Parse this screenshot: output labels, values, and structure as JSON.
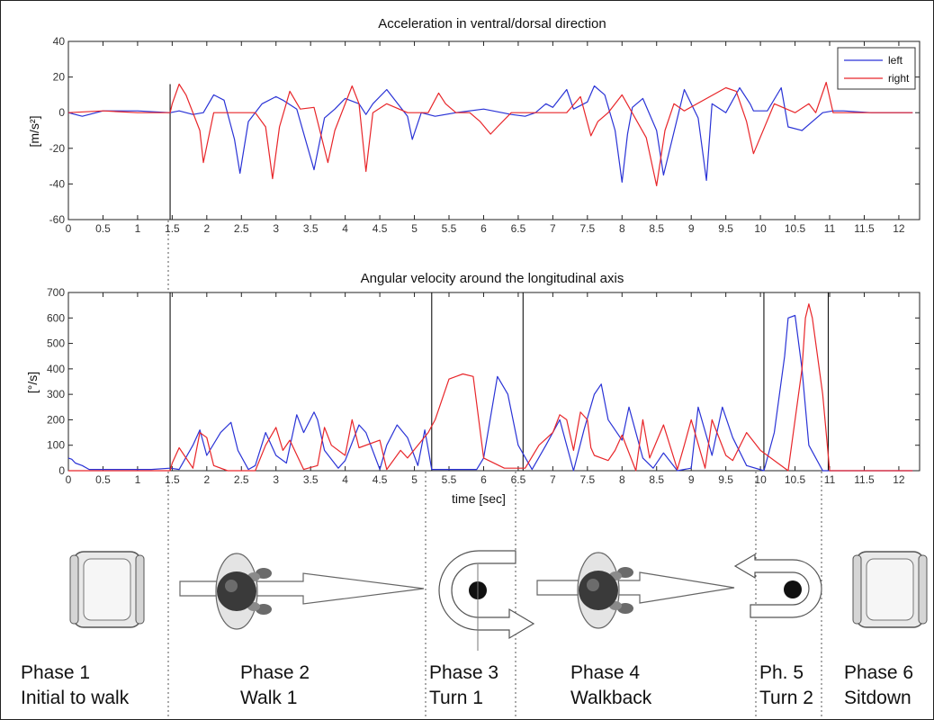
{
  "chart_data": [
    {
      "type": "line",
      "title": "Acceleration in ventral/dorsal direction",
      "ylabel": "[m/s²]",
      "xlabel": "",
      "xlim": [
        0,
        12.3
      ],
      "ylim": [
        -60,
        40
      ],
      "xticks": [
        "0",
        "0.5",
        "1",
        "1.5",
        "2",
        "2.5",
        "3",
        "3.5",
        "4",
        "4.5",
        "5",
        "5.5",
        "6",
        "6.5",
        "7",
        "7.5",
        "8",
        "8.5",
        "9",
        "9.5",
        "10",
        "10.5",
        "11",
        "11.5",
        "12"
      ],
      "yticks": [
        "40",
        "20",
        "0",
        "-20",
        "-40",
        "-60"
      ],
      "legend": {
        "position": "top-right"
      },
      "grid": false,
      "colors": {
        "left": "#2a33d6",
        "right": "#e8262a"
      },
      "vlines": [
        1.47
      ],
      "series": [
        {
          "name": "left",
          "x": [
            0,
            0.2,
            0.5,
            1.0,
            1.47,
            1.6,
            1.8,
            1.95,
            2.1,
            2.25,
            2.4,
            2.48,
            2.6,
            2.8,
            3.0,
            3.1,
            3.3,
            3.55,
            3.7,
            3.85,
            4.0,
            4.2,
            4.3,
            4.4,
            4.6,
            4.9,
            4.97,
            5.1,
            5.3,
            5.6,
            6.0,
            6.4,
            6.6,
            6.75,
            6.9,
            7.0,
            7.2,
            7.3,
            7.5,
            7.6,
            7.75,
            7.9,
            8.0,
            8.08,
            8.15,
            8.3,
            8.5,
            8.6,
            8.9,
            9.1,
            9.22,
            9.3,
            9.5,
            9.7,
            9.85,
            9.9,
            10.1,
            10.3,
            10.4,
            10.6,
            10.75,
            10.9,
            11.05,
            11.2,
            11.6,
            12.2
          ],
          "y": [
            0,
            -2,
            1,
            1,
            0,
            1,
            -1,
            0,
            10,
            7,
            -15,
            -34,
            -5,
            5,
            9,
            7,
            2,
            -32,
            -3,
            2,
            8,
            5,
            -1,
            5,
            13,
            -2,
            -15,
            0,
            -2,
            0,
            2,
            -1,
            -2,
            0,
            5,
            3,
            13,
            2,
            6,
            15,
            10,
            -10,
            -39,
            -12,
            3,
            8,
            -10,
            -35,
            13,
            -3,
            -38,
            5,
            0,
            14,
            5,
            1,
            1,
            14,
            -8,
            -10,
            -5,
            0,
            1,
            1,
            0,
            0
          ]
        },
        {
          "name": "right",
          "x": [
            0,
            0.5,
            1.0,
            1.47,
            1.5,
            1.6,
            1.7,
            1.9,
            1.95,
            2.1,
            2.3,
            2.7,
            2.85,
            2.95,
            3.05,
            3.2,
            3.35,
            3.55,
            3.75,
            3.85,
            4.1,
            4.2,
            4.3,
            4.4,
            4.6,
            4.9,
            5.2,
            5.35,
            5.45,
            5.6,
            5.8,
            5.95,
            6.1,
            6.2,
            6.4,
            6.6,
            7.0,
            7.2,
            7.4,
            7.55,
            7.65,
            7.8,
            8.0,
            8.35,
            8.5,
            8.62,
            8.75,
            8.9,
            9.5,
            9.65,
            9.8,
            9.9,
            10.2,
            10.5,
            10.7,
            10.8,
            10.95,
            11.05,
            11.5,
            12.2
          ],
          "y": [
            0,
            1,
            0,
            0,
            5,
            16,
            10,
            -10,
            -28,
            0,
            0,
            0,
            -8,
            -37,
            -8,
            12,
            2,
            3,
            -28,
            -10,
            15,
            5,
            -33,
            0,
            5,
            0,
            0,
            11,
            5,
            0,
            0,
            -5,
            -12,
            -8,
            0,
            0,
            0,
            0,
            9,
            -13,
            -5,
            0,
            10,
            -14,
            -41,
            -10,
            5,
            1,
            14,
            12,
            -5,
            -23,
            5,
            0,
            5,
            0,
            17,
            0,
            0,
            0
          ]
        }
      ]
    },
    {
      "type": "line",
      "title": "Angular velocity around the longitudinal axis",
      "ylabel": "[°/s]",
      "xlabel": "time [sec]",
      "xlim": [
        0,
        12.3
      ],
      "ylim": [
        0,
        700
      ],
      "xticks": [
        "0",
        "0.5",
        "1",
        "1.5",
        "2",
        "2.5",
        "3",
        "3.5",
        "4",
        "4.5",
        "5",
        "5.5",
        "6",
        "6.5",
        "7",
        "7.5",
        "8",
        "8.5",
        "9",
        "9.5",
        "10",
        "10.5",
        "11",
        "11.5",
        "12"
      ],
      "yticks": [
        "700",
        "600",
        "500",
        "400",
        "300",
        "200",
        "100",
        "0"
      ],
      "grid": false,
      "colors": {
        "left": "#2a33d6",
        "right": "#e8262a"
      },
      "vlines": [
        1.47,
        5.25,
        6.57,
        10.05,
        10.98
      ],
      "series": [
        {
          "name": "left",
          "x": [
            0,
            0.05,
            0.1,
            0.2,
            0.3,
            1.2,
            1.47,
            1.6,
            1.8,
            1.9,
            2.0,
            2.2,
            2.35,
            2.45,
            2.6,
            2.7,
            2.85,
            3.0,
            3.15,
            3.3,
            3.4,
            3.55,
            3.6,
            3.7,
            3.9,
            4.0,
            4.2,
            4.3,
            4.5,
            4.6,
            4.75,
            4.9,
            5.05,
            5.15,
            5.25,
            5.5,
            5.8,
            5.9,
            6.0,
            6.2,
            6.35,
            6.5,
            6.7,
            6.9,
            7.1,
            7.3,
            7.45,
            7.6,
            7.7,
            7.8,
            8.0,
            8.1,
            8.3,
            8.45,
            8.6,
            8.8,
            9.0,
            9.1,
            9.3,
            9.45,
            9.6,
            9.8,
            10.05,
            10.2,
            10.35,
            10.4,
            10.5,
            10.6,
            10.7,
            10.9,
            11.0,
            11.5,
            12.2
          ],
          "y": [
            50,
            45,
            30,
            20,
            5,
            5,
            10,
            5,
            100,
            160,
            60,
            150,
            190,
            80,
            5,
            20,
            150,
            60,
            30,
            220,
            150,
            230,
            200,
            80,
            10,
            40,
            180,
            150,
            5,
            100,
            180,
            130,
            20,
            160,
            5,
            5,
            5,
            5,
            50,
            370,
            300,
            100,
            5,
            100,
            200,
            0,
            160,
            300,
            340,
            200,
            120,
            250,
            50,
            10,
            70,
            0,
            10,
            250,
            60,
            250,
            130,
            20,
            0,
            150,
            450,
            600,
            610,
            400,
            100,
            0,
            0,
            0,
            0
          ]
        },
        {
          "name": "right",
          "x": [
            0,
            1.2,
            1.47,
            1.5,
            1.6,
            1.8,
            1.9,
            2.0,
            2.1,
            2.3,
            2.5,
            2.7,
            2.85,
            3.0,
            3.1,
            3.2,
            3.4,
            3.6,
            3.7,
            3.8,
            4.0,
            4.1,
            4.2,
            4.5,
            4.6,
            4.8,
            4.9,
            5.2,
            5.3,
            5.5,
            5.7,
            5.85,
            6.0,
            6.3,
            6.6,
            6.8,
            7.0,
            7.1,
            7.2,
            7.3,
            7.4,
            7.5,
            7.55,
            7.6,
            7.8,
            7.9,
            8.0,
            8.2,
            8.3,
            8.4,
            8.6,
            8.8,
            8.9,
            9.0,
            9.2,
            9.3,
            9.5,
            9.6,
            9.8,
            10.0,
            10.4,
            10.6,
            10.65,
            10.7,
            10.75,
            10.9,
            11.0,
            11.5,
            12.2
          ],
          "y": [
            0,
            0,
            0,
            30,
            90,
            10,
            150,
            130,
            20,
            0,
            0,
            0,
            100,
            170,
            80,
            120,
            5,
            20,
            170,
            100,
            60,
            200,
            90,
            120,
            5,
            80,
            50,
            150,
            200,
            360,
            380,
            370,
            50,
            10,
            10,
            100,
            150,
            220,
            200,
            80,
            230,
            200,
            90,
            60,
            40,
            80,
            140,
            0,
            200,
            50,
            180,
            5,
            100,
            200,
            10,
            200,
            60,
            40,
            150,
            80,
            0,
            400,
            600,
            655,
            600,
            300,
            0,
            0,
            0
          ]
        }
      ]
    }
  ],
  "phases": [
    {
      "line1": "Phase 1",
      "line2": "Initial to walk"
    },
    {
      "line1": "Phase 2",
      "line2": "Walk 1"
    },
    {
      "line1": "Phase 3",
      "line2": "Turn 1"
    },
    {
      "line1": "Phase 4",
      "line2": "Walkback"
    },
    {
      "line1": "Ph. 5",
      "line2": "Turn 2"
    },
    {
      "line1": "Phase 6",
      "line2": "Sitdown"
    }
  ],
  "icons": [
    "chair-icon",
    "walking-person-icon",
    "turn-icon",
    "walking-person-icon",
    "turn-icon",
    "chair-icon"
  ]
}
